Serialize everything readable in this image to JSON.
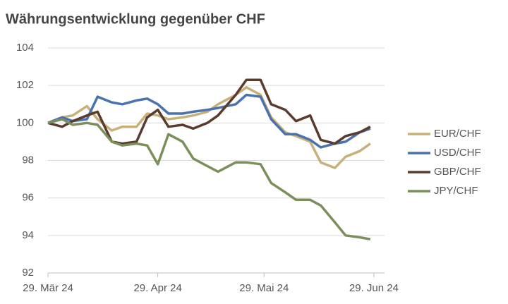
{
  "chart_data": {
    "type": "line",
    "title": "Währungsentwicklung gegenüber CHF",
    "x": [
      "2024-03-29",
      "2024-04-02",
      "2024-04-05",
      "2024-04-09",
      "2024-04-12",
      "2024-04-16",
      "2024-04-19",
      "2024-04-23",
      "2024-04-26",
      "2024-04-29",
      "2024-05-02",
      "2024-05-06",
      "2024-05-09",
      "2024-05-13",
      "2024-05-16",
      "2024-05-21",
      "2024-05-24",
      "2024-05-28",
      "2024-05-31",
      "2024-06-04",
      "2024-06-07",
      "2024-06-11",
      "2024-06-14",
      "2024-06-18",
      "2024-06-21",
      "2024-06-25",
      "2024-06-28"
    ],
    "series": [
      {
        "name": "EUR/CHF",
        "color": "#c8b07a",
        "values": [
          100,
          100.3,
          100.4,
          100.9,
          100.2,
          99.6,
          99.8,
          99.8,
          100.5,
          100.4,
          100.2,
          100.3,
          100.4,
          100.6,
          101.0,
          101.5,
          101.9,
          101.5,
          100.3,
          99.5,
          99.3,
          99.0,
          97.9,
          97.6,
          98.2,
          98.5,
          98.9
        ]
      },
      {
        "name": "USD/CHF",
        "color": "#4a72b0",
        "values": [
          100,
          100.3,
          100.1,
          100.2,
          101.4,
          101.1,
          101.0,
          101.2,
          101.3,
          101.0,
          100.5,
          100.5,
          100.6,
          100.7,
          100.8,
          101.0,
          101.5,
          101.4,
          100.2,
          99.4,
          99.4,
          99.1,
          98.7,
          98.9,
          99.0,
          99.5,
          99.7
        ]
      },
      {
        "name": "GBP/CHF",
        "color": "#5a3b2e",
        "values": [
          100,
          99.8,
          100.1,
          100.4,
          100.6,
          99.0,
          98.9,
          99.0,
          100.3,
          100.7,
          99.8,
          99.9,
          99.7,
          100.0,
          100.4,
          101.5,
          102.3,
          102.3,
          101.0,
          100.7,
          100.1,
          100.4,
          99.1,
          98.9,
          99.3,
          99.5,
          99.8
        ]
      },
      {
        "name": "JPY/CHF",
        "color": "#7a8f5a",
        "values": [
          100,
          100.2,
          99.9,
          100.0,
          99.9,
          99.0,
          98.8,
          98.9,
          98.8,
          97.8,
          99.4,
          99.0,
          98.1,
          97.7,
          97.4,
          97.9,
          97.9,
          97.8,
          96.8,
          96.3,
          95.9,
          95.9,
          95.6,
          94.7,
          94.0,
          93.9,
          93.8
        ]
      }
    ],
    "xlim": [
      "2024-03-29",
      "2024-07-02"
    ],
    "xticks": [
      {
        "value": "2024-03-29",
        "label": "29. Mär 24"
      },
      {
        "value": "2024-04-29",
        "label": "29. Apr 24"
      },
      {
        "value": "2024-05-29",
        "label": "29. Mai 24"
      },
      {
        "value": "2024-06-29",
        "label": "29. Jun 24"
      }
    ],
    "ylim": [
      92,
      104
    ],
    "yticks": [
      92,
      94,
      96,
      98,
      100,
      102,
      104
    ],
    "grid": true,
    "legend": "right"
  }
}
